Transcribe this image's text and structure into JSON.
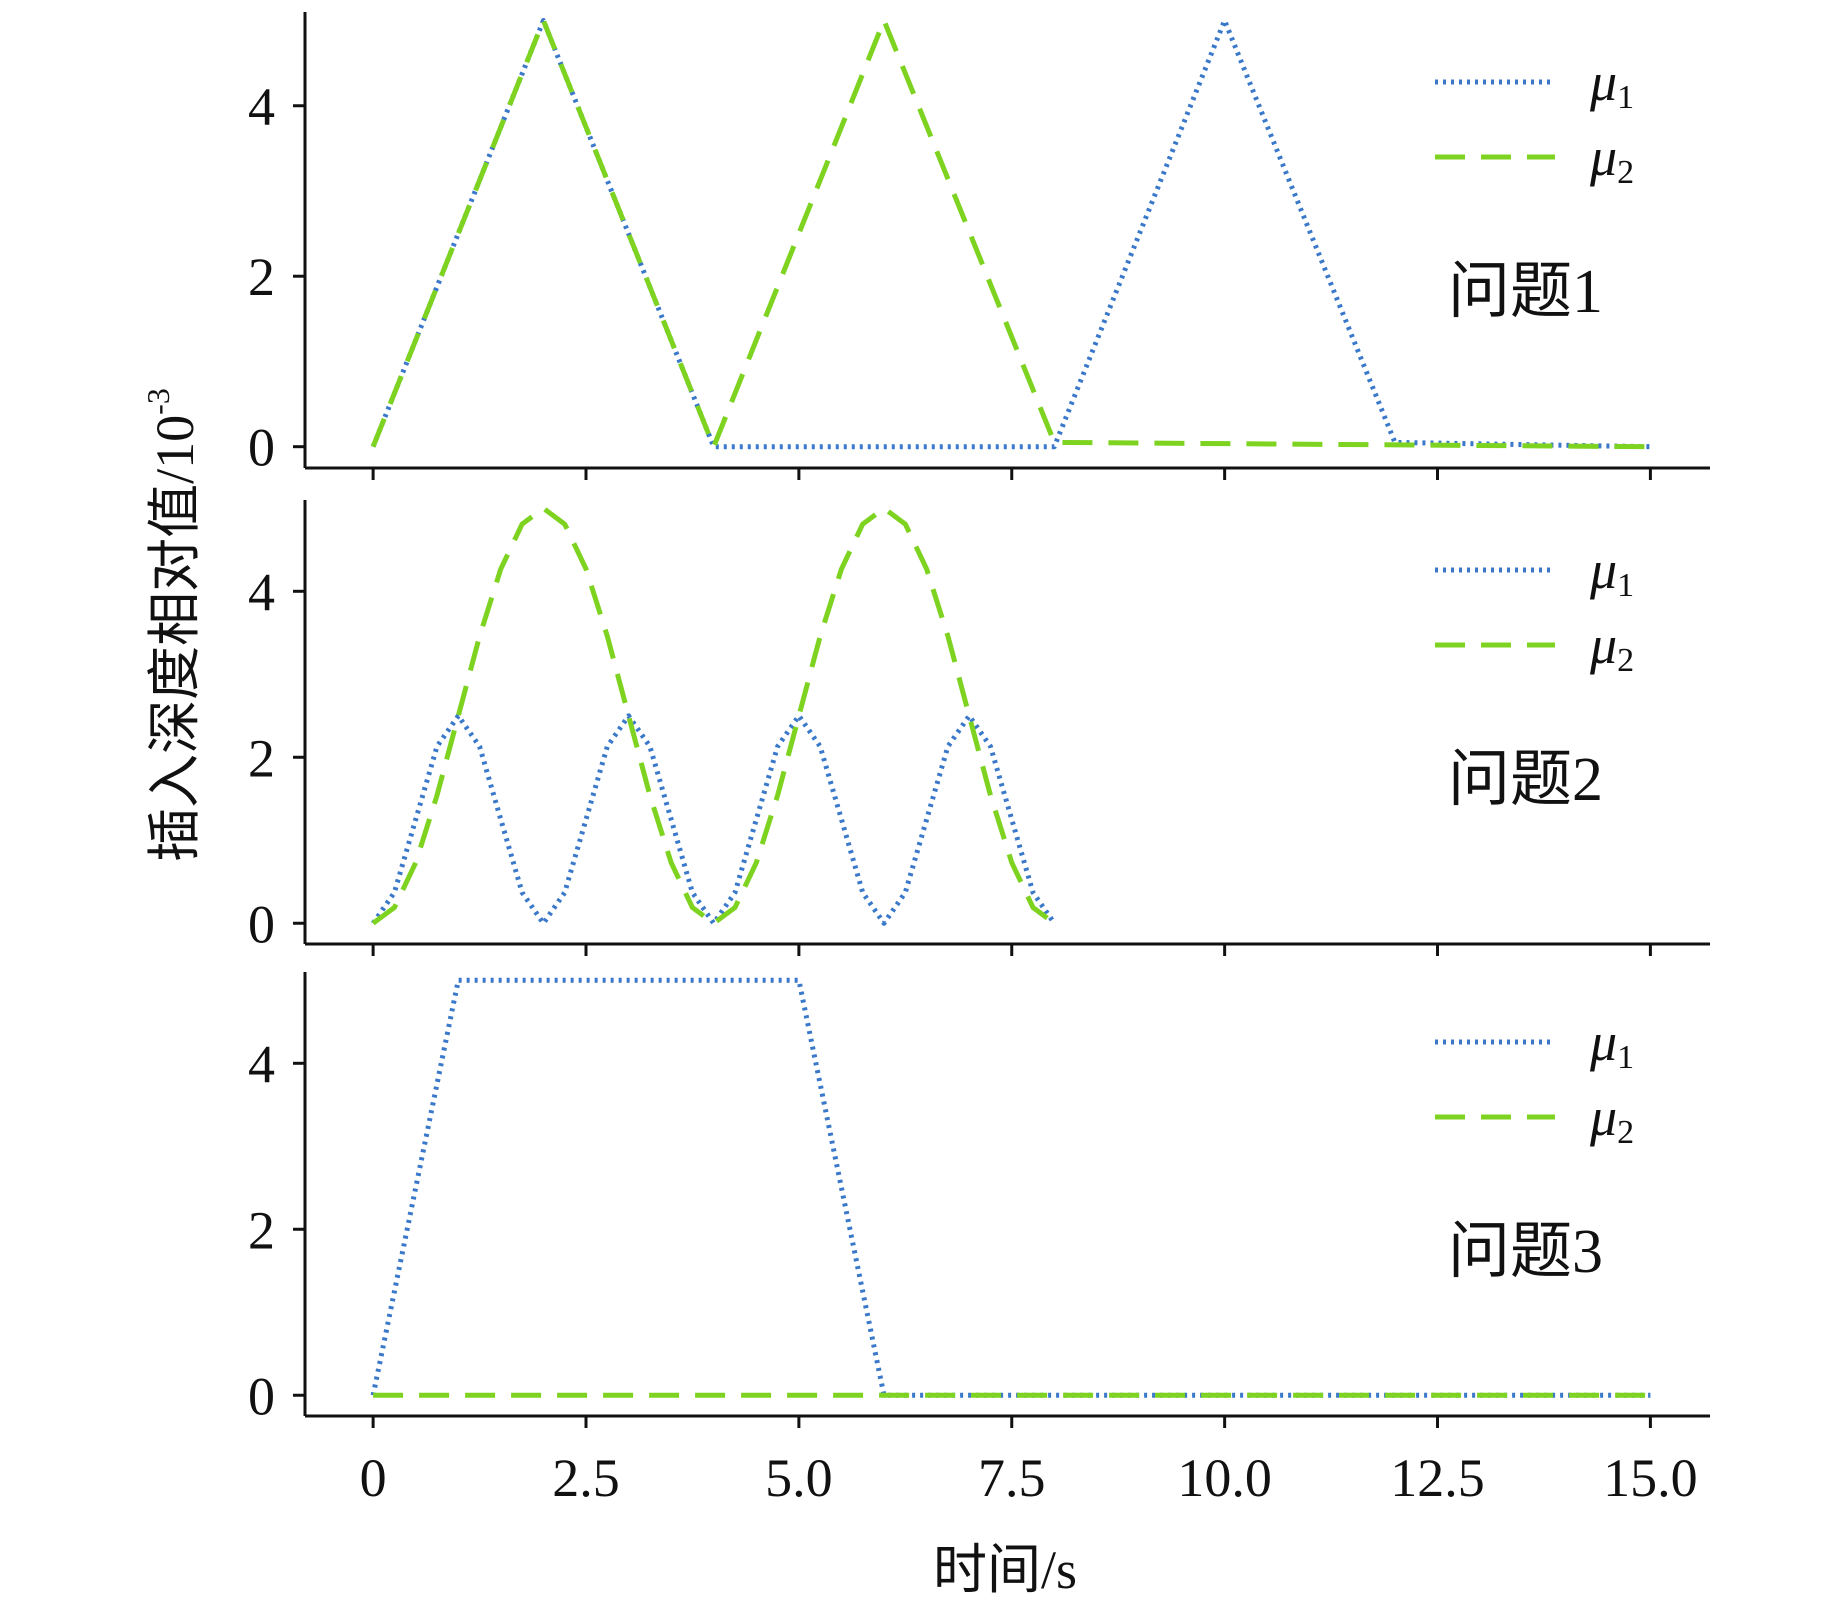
{
  "chart_data": [
    {
      "type": "line",
      "annotation": "问题1",
      "ylim": [
        -0.25,
        5.1
      ],
      "yticks": [
        0,
        2,
        4
      ],
      "series": [
        {
          "name": "μ",
          "subscript": "1",
          "color": "#3a78c9",
          "dash": "dotted",
          "x": [
            0,
            2,
            4,
            8,
            10,
            12,
            15
          ],
          "y": [
            0,
            5,
            0,
            0,
            5,
            0.05,
            0
          ]
        },
        {
          "name": "μ",
          "subscript": "2",
          "color": "#7ed321",
          "dash": "dashed",
          "x": [
            0,
            2,
            4,
            6,
            8,
            15
          ],
          "y": [
            0,
            5,
            0,
            5,
            0.05,
            0
          ]
        }
      ]
    },
    {
      "type": "line",
      "annotation": "问题2",
      "ylim": [
        -0.25,
        5.1
      ],
      "yticks": [
        0,
        2,
        4
      ],
      "series": [
        {
          "name": "μ",
          "subscript": "1",
          "color": "#3a78c9",
          "dash": "dotted",
          "x": [
            0,
            0.25,
            0.5,
            0.75,
            1,
            1.25,
            1.5,
            1.75,
            2,
            2.25,
            2.5,
            2.75,
            3,
            3.25,
            3.5,
            3.75,
            4,
            4.25,
            4.5,
            4.75,
            5,
            5.25,
            5.5,
            5.75,
            6,
            6.25,
            6.5,
            6.75,
            7,
            7.25,
            7.5,
            7.75,
            8
          ],
          "y": [
            0,
            0.37,
            1.25,
            2.13,
            2.5,
            2.13,
            1.25,
            0.37,
            0,
            0.37,
            1.25,
            2.13,
            2.5,
            2.13,
            1.25,
            0.37,
            0,
            0.37,
            1.25,
            2.13,
            2.5,
            2.13,
            1.25,
            0.37,
            0,
            0.37,
            1.25,
            2.13,
            2.5,
            2.13,
            1.25,
            0.37,
            0
          ]
        },
        {
          "name": "μ",
          "subscript": "2",
          "color": "#7ed321",
          "dash": "dashed",
          "x": [
            0,
            0.25,
            0.5,
            0.75,
            1,
            1.25,
            1.5,
            1.75,
            2,
            2.25,
            2.5,
            2.75,
            3,
            3.25,
            3.5,
            3.75,
            4,
            4.25,
            4.5,
            4.75,
            5,
            5.25,
            5.5,
            5.75,
            6,
            6.25,
            6.5,
            6.75,
            7,
            7.25,
            7.5,
            7.75,
            8
          ],
          "y": [
            0,
            0.19,
            0.73,
            1.54,
            2.5,
            3.46,
            4.27,
            4.81,
            5,
            4.81,
            4.27,
            3.46,
            2.5,
            1.54,
            0.73,
            0.19,
            0,
            0.19,
            0.73,
            1.54,
            2.5,
            3.46,
            4.27,
            4.81,
            5,
            4.81,
            4.27,
            3.46,
            2.5,
            1.54,
            0.73,
            0.19,
            0
          ]
        }
      ]
    },
    {
      "type": "line",
      "annotation": "问题3",
      "ylim": [
        -0.25,
        5.1
      ],
      "yticks": [
        0,
        2,
        4
      ],
      "series": [
        {
          "name": "μ",
          "subscript": "1",
          "color": "#3a78c9",
          "dash": "dotted",
          "x": [
            0,
            1,
            5,
            6,
            15
          ],
          "y": [
            0,
            5,
            5,
            0,
            0
          ]
        },
        {
          "name": "μ",
          "subscript": "2",
          "color": "#7ed321",
          "dash": "dashed",
          "x": [
            0,
            15
          ],
          "y": [
            0,
            0
          ]
        }
      ]
    }
  ],
  "xaxis": {
    "xlim": [
      -0.8,
      15.7
    ],
    "ticks": [
      0,
      2.5,
      5.0,
      7.5,
      10.0,
      12.5,
      15.0
    ],
    "tick_labels": [
      "0",
      "2.5",
      "5.0",
      "7.5",
      "10.0",
      "12.5",
      "15.0"
    ],
    "label": "时间/s"
  },
  "ylabel": "插入深度相对值/10",
  "ylabel_exponent": "-3"
}
